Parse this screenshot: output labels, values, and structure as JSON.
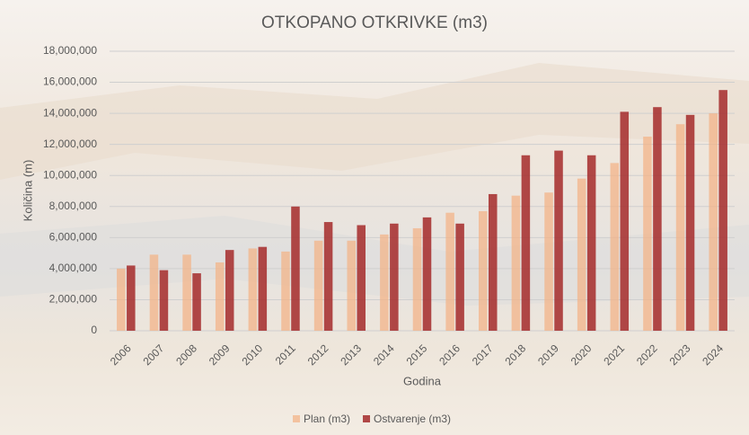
{
  "chart_data": {
    "type": "bar",
    "title": "OTKOPANO OTKRIVKE (m3)",
    "x_label": "Godina",
    "y_label": "Količina (m)",
    "categories": [
      "2006",
      "2007",
      "2008",
      "2009",
      "2010",
      "2011",
      "2012",
      "2013",
      "2014",
      "2015",
      "2016",
      "2017",
      "2018",
      "2019",
      "2020",
      "2021",
      "2022",
      "2023",
      "2024"
    ],
    "series": [
      {
        "name": "Plan (m3)",
        "color": "#f4b183",
        "values": [
          4000000,
          4900000,
          4900000,
          4400000,
          5300000,
          5100000,
          5800000,
          5800000,
          6200000,
          6600000,
          7600000,
          7700000,
          8700000,
          8900000,
          9800000,
          10800000,
          12500000,
          13300000,
          14000000
        ]
      },
      {
        "name": "Ostvarenje (m3)",
        "color": "#a52a2a",
        "values": [
          4200000,
          3900000,
          3700000,
          5200000,
          5400000,
          8000000,
          7000000,
          6800000,
          6900000,
          7300000,
          6900000,
          8800000,
          11300000,
          11600000,
          11300000,
          14100000,
          14400000,
          13900000,
          15500000
        ]
      }
    ],
    "ylim": [
      0,
      18000000
    ],
    "yticks": [
      0,
      {
        "value": 2000000,
        "label": "2,000,000"
      },
      {
        "value": 4000000,
        "label": "4,000,000"
      },
      {
        "value": 6000000,
        "label": "6,000,000"
      },
      {
        "value": 8000000,
        "label": "8,000,000"
      },
      {
        "value": 10000000,
        "label": "10,000,000"
      },
      {
        "value": 12000000,
        "label": "12,000,000"
      },
      {
        "value": 14000000,
        "label": "14,000,000"
      },
      {
        "value": 16000000,
        "label": "16,000,000"
      },
      {
        "value": 18000000,
        "label": "18,000,000"
      }
    ],
    "grid": true,
    "legend": "bottom"
  }
}
